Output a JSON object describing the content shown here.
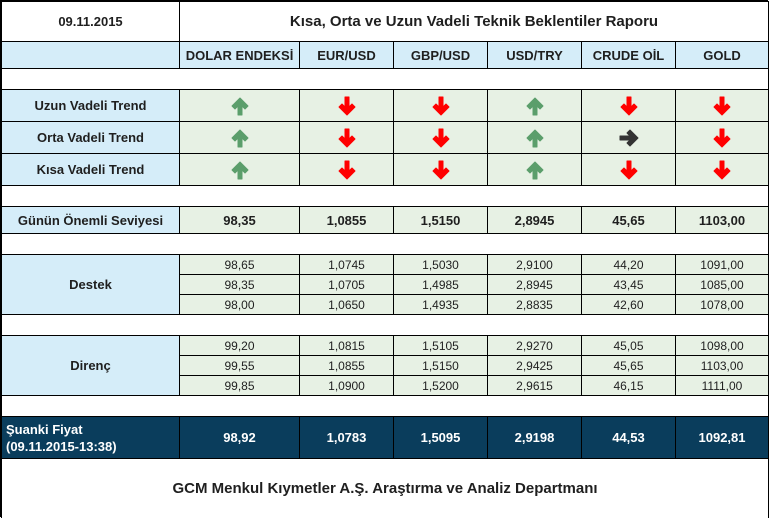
{
  "header": {
    "date": "09.11.2015",
    "title": "Kısa, Orta ve Uzun Vadeli Teknik Beklentiler Raporu"
  },
  "columns": [
    "DOLAR ENDEKSİ",
    "EUR/USD",
    "GBP/USD",
    "USD/TRY",
    "CRUDE OİL",
    "GOLD"
  ],
  "colors": {
    "label_bg": "#d5edf9",
    "cell_bg": "#e7f1e4",
    "navy_bg": "#0a3d5c",
    "arrow_up": "#5b9e6b",
    "arrow_down": "#ff0000",
    "arrow_right": "#333333"
  },
  "trends": [
    {
      "label": "Uzun Vadeli Trend",
      "icons": [
        "arrow-up",
        "arrow-down",
        "arrow-down",
        "arrow-up",
        "arrow-down",
        "arrow-down"
      ]
    },
    {
      "label": "Orta Vadeli Trend",
      "icons": [
        "arrow-up",
        "arrow-down",
        "arrow-down",
        "arrow-up",
        "arrow-right",
        "arrow-down"
      ]
    },
    {
      "label": "Kısa Vadeli Trend",
      "icons": [
        "arrow-up",
        "arrow-down",
        "arrow-down",
        "arrow-up",
        "arrow-down",
        "arrow-down"
      ]
    }
  ],
  "key_level": {
    "label": "Günün Önemli Seviyesi",
    "values": [
      "98,35",
      "1,0855",
      "1,5150",
      "2,8945",
      "45,65",
      "1103,00"
    ]
  },
  "support": {
    "label": "Destek",
    "rows": [
      [
        "98,65",
        "1,0745",
        "1,5030",
        "2,9100",
        "44,20",
        "1091,00"
      ],
      [
        "98,35",
        "1,0705",
        "1,4985",
        "2,8945",
        "43,45",
        "1085,00"
      ],
      [
        "98,00",
        "1,0650",
        "1,4935",
        "2,8835",
        "42,60",
        "1078,00"
      ]
    ]
  },
  "resistance": {
    "label": "Direnç",
    "rows": [
      [
        "99,20",
        "1,0815",
        "1,5105",
        "2,9270",
        "45,05",
        "1098,00"
      ],
      [
        "99,55",
        "1,0855",
        "1,5150",
        "2,9425",
        "45,65",
        "1103,00"
      ],
      [
        "99,85",
        "1,0900",
        "1,5200",
        "2,9615",
        "46,15",
        "1111,00"
      ]
    ]
  },
  "current_price": {
    "label_line1": "Şuanki Fiyat",
    "label_line2": "(09.11.2015-13:38)",
    "values": [
      "98,92",
      "1,0783",
      "1,5095",
      "2,9198",
      "44,53",
      "1092,81"
    ]
  },
  "footer": {
    "text": "GCM Menkul Kıymetler A.Ş. Araştırma ve Analiz Departmanı"
  }
}
